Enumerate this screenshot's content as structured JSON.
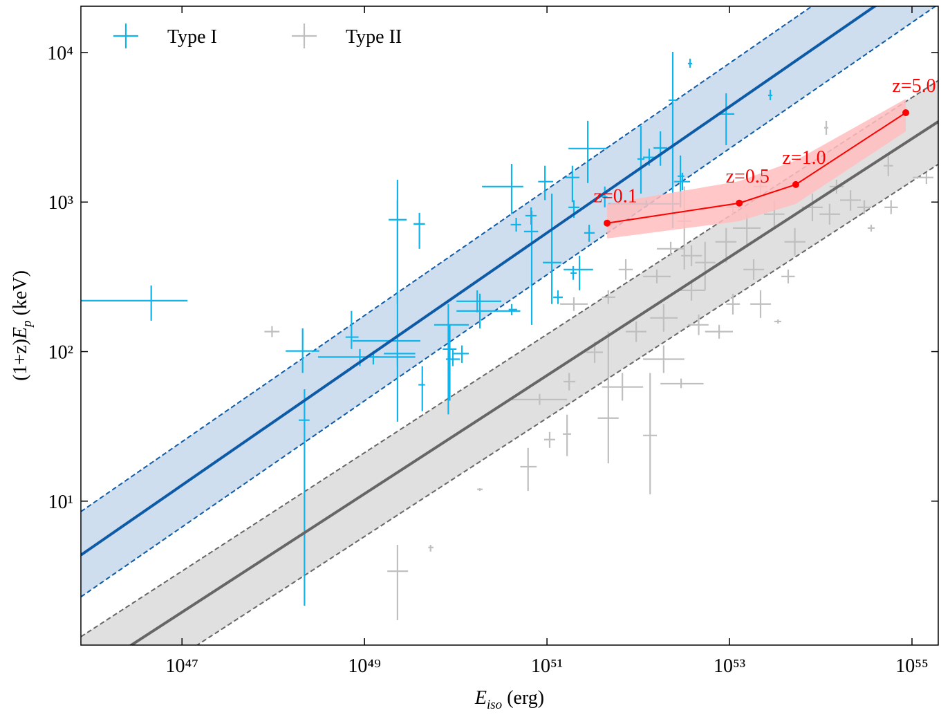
{
  "chart_data": {
    "type": "scatter",
    "xlabel": [
      "E",
      "iso",
      " (erg)"
    ],
    "ylabel": [
      "(1+z)",
      "E",
      "p",
      " (keV)"
    ],
    "xscale": "log",
    "yscale": "log",
    "xlim": [
      7.8e+45,
      1.94e+55
    ],
    "ylim": [
      1.09,
      20400
    ],
    "xticks": [
      {
        "value": 1e+47,
        "label": "10⁴⁷"
      },
      {
        "value": 1e+49,
        "label": "10⁴⁹"
      },
      {
        "value": 1e+51,
        "label": "10⁵¹"
      },
      {
        "value": 1e+53,
        "label": "10⁵³"
      },
      {
        "value": 1e+55,
        "label": "10⁵⁵"
      }
    ],
    "yticks": [
      {
        "value": 10,
        "label": "10¹"
      },
      {
        "value": 100,
        "label": "10²"
      },
      {
        "value": 1000,
        "label": "10³"
      },
      {
        "value": 10000,
        "label": "10⁴"
      }
    ],
    "legend": "upper left",
    "series": [
      {
        "name": "Type I",
        "color": "#0db5ee",
        "x": [
          4.6e+46,
          2.1e+48,
          2.2e+48,
          2.3e+49,
          7.2e+48,
          1.25e+49,
          2.3e+49,
          4e+49,
          4.3e+49,
          2.3e+49,
          8.9e+48,
          8.3e+49,
          8.6e+49,
          9.3e+49,
          1.17e+50,
          1.84e+50,
          1.72e+50,
          4.1e+50,
          4.6e+50,
          4.1e+50,
          6.8e+50,
          6.7e+50,
          9.5e+50,
          1.13e+51,
          1.32e+51,
          1.9e+51,
          1.97e+51,
          1.94e+51,
          2.8e+51,
          2.9e+51,
          2.27e+51,
          4.3e+51,
          1.07e+52,
          1.32e+52,
          1.75e+52,
          2.39e+52,
          2.9e+52,
          3.05e+52,
          3.7e+52,
          9.2e+52,
          2.8e+53,
          1.23e+52
        ],
        "x_lower": [
          7.8e+45,
          1.37e+48,
          1.9e+48,
          7.4e+48,
          6.2e+48,
          1.05e+49,
          1.84e+49,
          3.45e+49,
          3.9e+49,
          1.63e+49,
          3.1e+48,
          5.8e+49,
          7.2e+49,
          7.8e+49,
          9.3e+49,
          1.02e+50,
          1.02e+50,
          1.94e+50,
          4e+50,
          3.8e+50,
          5.6e+50,
          5.8e+50,
          8e+50,
          9e+50,
          1.17e+51,
          1.6e+51,
          1.72e+51,
          1.81e+51,
          1.72e+51,
          2.56e+51,
          1.52e+51,
          4e+51,
          9.8e+51,
          1.13e+52,
          1.47e+52,
          2.15e+52,
          2.7e+52,
          2.48e+52,
          3.5e+52,
          7.7e+52,
          2.65e+53,
          4.7e+51
        ],
        "x_upper": [
          1.15e+47,
          3.2e+48,
          2.5e+48,
          4.1e+49,
          8.6e+48,
          1.44e+49,
          2.9e+49,
          4.6e+49,
          4.6e+49,
          3.6e+49,
          3.6e+49,
          1.39e+50,
          1.02e+50,
          1.11e+50,
          1.39e+50,
          5.1e+50,
          3.16e+50,
          5.5e+50,
          5.2e+50,
          4.7e+50,
          8e+50,
          7.7e+50,
          1.17e+51,
          1.44e+51,
          1.49e+51,
          2.27e+51,
          2.27e+51,
          2.12e+51,
          4.6e+51,
          3.33e+51,
          3.2e+51,
          4.6e+51,
          1.17e+52,
          1.55e+52,
          2.08e+52,
          2.7e+52,
          3.2e+52,
          3.7e+52,
          3.9e+52,
          1.13e+53,
          2.95e+53,
          2.95e+52
        ],
        "values": [
          219,
          101,
          34.8,
          118,
          125,
          92,
          762,
          714,
          60,
          97,
          92,
          151,
          104,
          89,
          97,
          187,
          217,
          1270,
          706,
          191,
          635,
          811,
          1370,
          394,
          231,
          1460,
          922,
          335,
          2280,
          622,
          354,
          1080,
          1940,
          1990,
          2300,
          4800,
          1490,
          1370,
          8440,
          3880,
          5170,
          973
        ],
        "y_lower": [
          161,
          72,
          2.0,
          34,
          104,
          82,
          208,
          487,
          40,
          80,
          80,
          38,
          47,
          80,
          84,
          143,
          183,
          830,
          635,
          175,
          151,
          706,
          1030,
          208,
          208,
          1000,
          785,
          302,
          1340,
          542,
          257,
          922,
          1140,
          1750,
          1750,
          670,
          922,
          1200,
          7920,
          2400,
          4800,
          922
        ],
        "y_upper": [
          277,
          143,
          56,
          1410,
          187,
          101,
          1030,
          847,
          80,
          116,
          104,
          208,
          151,
          104,
          110,
          244,
          257,
          1800,
          785,
          208,
          875,
          922,
          1750,
          1140,
          257,
          1750,
          1030,
          373,
          3490,
          706,
          438,
          1270,
          3240,
          2280,
          2970,
          10100,
          2050,
          1570,
          9100,
          5340,
          5640,
          1030
        ]
      },
      {
        "name": "Type II",
        "color": "#bfbfbf",
        "x": [
          9.7e+47,
          2.3e+49,
          5.3e+49,
          1.84e+50,
          6.2e+50,
          1.07e+51,
          1.66e+51,
          8.3e+50,
          1.75e+51,
          4.7e+51,
          6.7e+51,
          1.35e+52,
          1.9e+52,
          2.95e+52,
          3.33e+51,
          1.97e+51,
          7.3e+51,
          1.6e+52,
          3.83e+52,
          5.4e+52,
          9.2e+52,
          1.55e+53,
          2.19e+53,
          3.1e+53,
          5.2e+53,
          8.1e+53,
          1.25e+54,
          2.12e+54,
          3.57e+54,
          5.5e+54,
          1.44e+55,
          1.15e+54,
          4.6e+52,
          7.7e+52,
          1.9e+52,
          1.09e+53,
          9.5e+51,
          3.4e+53,
          3.83e+52,
          1.84e+53,
          4.4e+53,
          1.09e+53,
          4.7e+51,
          3.2e+52,
          3e+54,
          1.49e+54,
          2.27e+52,
          2.19e+53,
          5.9e+54
        ],
        "x_lower": [
          8e+47,
          1.78e+49,
          5e+49,
          1.72e+50,
          5.1e+50,
          9.3e+50,
          1.49e+51,
          4.1e+50,
          1.52e+51,
          3.6e+51,
          4e+51,
          1.13e+52,
          1.13e+52,
          1.75e+52,
          2.7e+51,
          1.39e+51,
          6.1e+51,
          1.13e+52,
          2.7e+52,
          4.2e+52,
          7e+52,
          1.09e+53,
          1.69e+53,
          2.39e+53,
          4e+53,
          6.2e+53,
          9.7e+53,
          1.63e+54,
          3.27e+54,
          4.9e+54,
          1.02e+55,
          1.09e+54,
          3.5e+52,
          5.4e+52,
          1.35e+52,
          9.2e+52,
          7.3e+51,
          3.1e+53,
          2.95e+52,
          1.42e+53,
          3.7e+53,
          9.2e+52,
          4e+51,
          2.7e+52,
          2.52e+54,
          1.25e+54,
          1.6e+52,
          1.84e+53,
          5e+54
        ],
        "x_upper": [
          1.17e+48,
          3e+49,
          5.7e+49,
          1.97e+50,
          7.7e+50,
          1.23e+51,
          1.84e+51,
          1.66e+51,
          2.05e+51,
          6.1e+51,
          1.13e+52,
          1.6e+52,
          3.2e+52,
          5.2e+52,
          4.1e+51,
          2.8e+51,
          8.7e+51,
          2.27e+52,
          5.4e+52,
          7e+52,
          1.19e+53,
          2.19e+53,
          2.85e+53,
          4e+53,
          6.8e+53,
          1.05e+54,
          1.63e+54,
          2.75e+54,
          3.9e+54,
          6.2e+54,
          1.72e+55,
          1.21e+54,
          5.9e+52,
          1.09e+53,
          2.7e+52,
          1.3e+53,
          1.23e+52,
          3.7e+53,
          5e+52,
          2.39e+53,
          5.2e+53,
          1.3e+53,
          5.6e+51,
          3.83e+52,
          3.57e+54,
          1.78e+54,
          3.2e+52,
          2.61e+53,
          7e+54
        ],
        "values": [
          136,
          3.4,
          4.9,
          12.0,
          17.0,
          25.8,
          28.1,
          47.8,
          63,
          35.9,
          58,
          27.5,
          89,
          61,
          99,
          208,
          354,
          318,
          257,
          394,
          542,
          670,
          208,
          830,
          542,
          922,
          830,
          1030,
          670,
          1750,
          1460,
          3140,
          151,
          136,
          168,
          208,
          136,
          159,
          438,
          354,
          318,
          922,
          231,
          745,
          922,
          1270,
          487,
          1270,
          922
        ],
        "y_lower": [
          125,
          1.6,
          4.6,
          11.7,
          11.7,
          22.7,
          20.0,
          44.0,
          55,
          17.9,
          47,
          11.1,
          72,
          57,
          84,
          187,
          302,
          286,
          219,
          257,
          394,
          514,
          168,
          670,
          438,
          745,
          706,
          875,
          635,
          1490,
          1320,
          2820,
          129,
          122,
          136,
          177,
          116,
          154,
          373,
          302,
          286,
          830,
          208,
          354,
          830,
          1140,
          438,
          1080,
          830
        ],
        "y_upper": [
          148,
          5.1,
          5.1,
          12.2,
          22.7,
          29.0,
          37.9,
          52.1,
          72,
          136,
          72,
          72,
          110,
          66,
          116,
          231,
          415,
          354,
          302,
          542,
          670,
          830,
          257,
          1030,
          670,
          1140,
          973,
          1200,
          706,
          2050,
          1570,
          3490,
          177,
          151,
          208,
          244,
          159,
          164,
          514,
          415,
          354,
          1030,
          257,
          1270,
          1030,
          1410,
          542,
          1490,
          1030
        ]
      }
    ],
    "fit_lines": [
      {
        "color": "#0d5aa7",
        "band_color": "#cfdeee",
        "x": [
          7.8e+45,
          1.94e+55
        ],
        "values": [
          4.36,
          40100
        ],
        "lower": [
          2.29,
          21000
        ],
        "upper": [
          8.51,
          78300
        ]
      },
      {
        "color": "#666666",
        "band_color": "#e0e0e0",
        "x": [
          7.8e+45,
          1.94e+55
        ],
        "values": [
          0.659,
          3450
        ],
        "lower": [
          0.341,
          1790
        ],
        "upper": [
          1.24,
          6500
        ]
      }
    ],
    "track": {
      "color": "#ff0000",
      "band_color": "#ffbdbd",
      "x": [
        4.56e+51,
        1.28e+53,
        5.33e+53,
        8.55e+54
      ],
      "values": [
        723,
        984,
        1310,
        3960
      ],
      "lower": [
        571,
        745,
        973,
        2970
      ],
      "upper": [
        973,
        1380,
        1900,
        4900
      ],
      "point_labels": [
        "z=0.1",
        "z=0.5",
        "z=1.0",
        "z=5.0"
      ]
    }
  }
}
